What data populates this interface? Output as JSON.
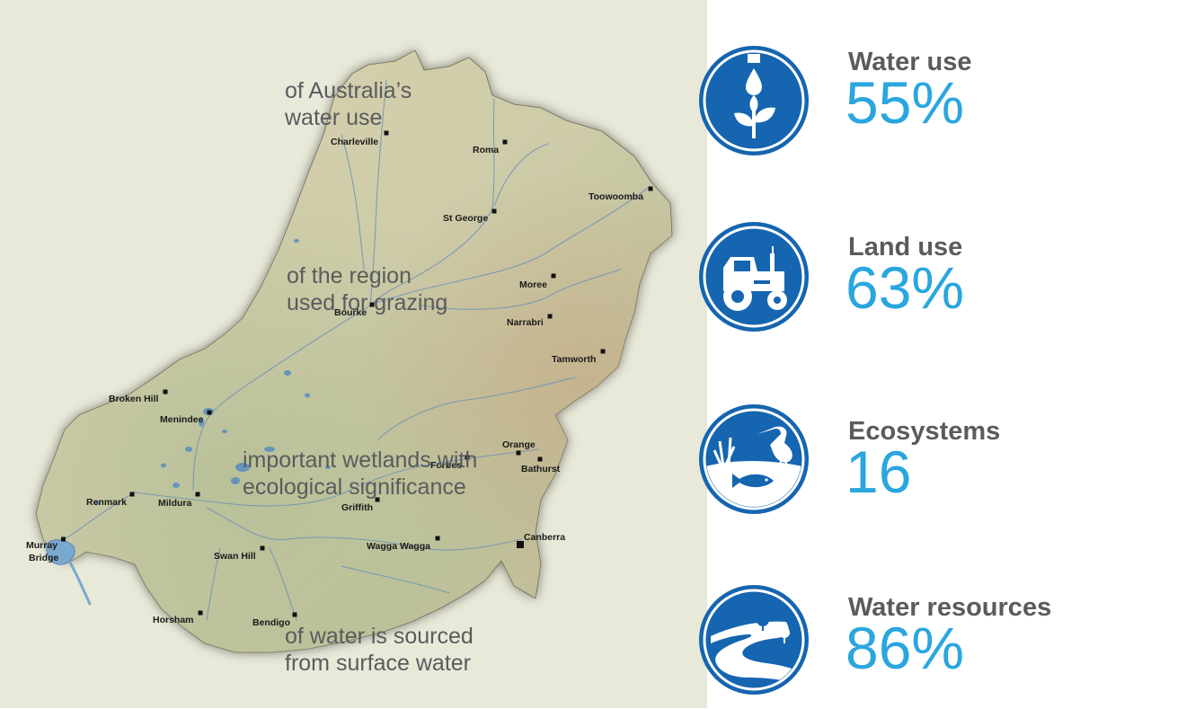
{
  "map": {
    "cities": [
      {
        "name": "Charleville",
        "id": "charleville"
      },
      {
        "name": "Roma",
        "id": "roma"
      },
      {
        "name": "Toowoomba",
        "id": "toowoomba"
      },
      {
        "name": "St George",
        "id": "st-george"
      },
      {
        "name": "Moree",
        "id": "moree"
      },
      {
        "name": "Bourke",
        "id": "bourke"
      },
      {
        "name": "Narrabri",
        "id": "narrabri"
      },
      {
        "name": "Tamworth",
        "id": "tamworth"
      },
      {
        "name": "Broken Hill",
        "id": "broken-hill"
      },
      {
        "name": "Menindee",
        "id": "menindee"
      },
      {
        "name": "Orange",
        "id": "orange"
      },
      {
        "name": "Forbes",
        "id": "forbes"
      },
      {
        "name": "Bathurst",
        "id": "bathurst"
      },
      {
        "name": "Renmark",
        "id": "renmark"
      },
      {
        "name": "Mildura",
        "id": "mildura"
      },
      {
        "name": "Griffith",
        "id": "griffith"
      },
      {
        "name": "Canberra",
        "id": "canberra"
      },
      {
        "name": "Wagga Wagga",
        "id": "wagga-wagga"
      },
      {
        "name": "Swan Hill",
        "id": "swan-hill"
      },
      {
        "name": "Horsham",
        "id": "horsham"
      },
      {
        "name": "Bendigo",
        "id": "bendigo"
      }
    ],
    "murray_bridge": [
      "Murray",
      "Bridge"
    ]
  },
  "stats": [
    {
      "id": "water-use",
      "icon": "water-drop-plant-icon",
      "title": "Water use",
      "value": "55%",
      "desc_lines": [
        "of Australia’s",
        "water use"
      ]
    },
    {
      "id": "land-use",
      "icon": "tractor-icon",
      "title": "Land use",
      "value": "63%",
      "desc_lines": [
        "of the region",
        "used for grazing"
      ]
    },
    {
      "id": "ecosystems",
      "icon": "heron-fish-icon",
      "title": "Ecosystems",
      "value": "16",
      "desc_lines": [
        "important wetlands with",
        "ecological significance"
      ]
    },
    {
      "id": "water-resources",
      "icon": "river-trees-icon",
      "title": "Water resources",
      "value": "86%",
      "desc_lines": [
        "of water is sourced",
        "from surface water"
      ]
    }
  ],
  "colors": {
    "badge_blue": "#1565b0",
    "value_blue": "#2aa6df",
    "text_gray": "#5a5b5d",
    "map_background": "#e8e9d8",
    "land": "#cdc9a3",
    "water": "#5e8fbf"
  }
}
